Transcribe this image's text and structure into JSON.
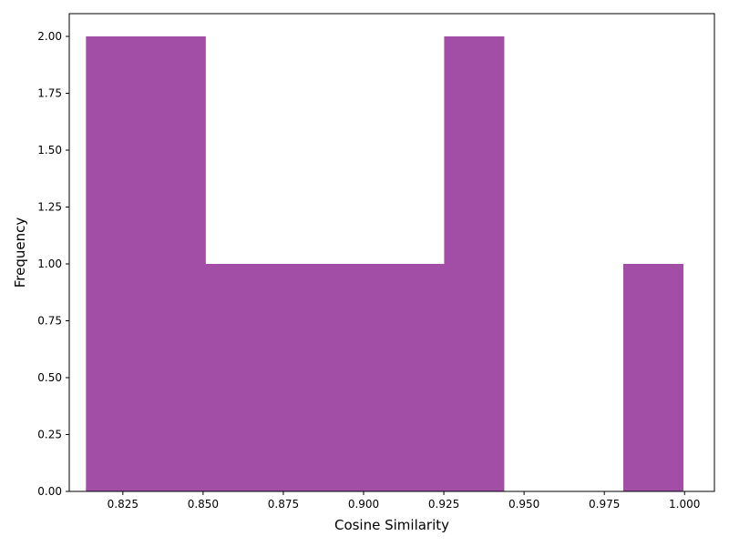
{
  "chart_data": {
    "type": "bar",
    "title": "",
    "xlabel": "Cosine Similarity",
    "ylabel": "Frequency",
    "xlim": [
      0.8083,
      1.0093
    ],
    "ylim": [
      0,
      2.1
    ],
    "bar_color": "#a24ea6",
    "bins": [
      {
        "x0": 0.8135,
        "x1": 0.8321,
        "value": 2
      },
      {
        "x0": 0.8321,
        "x1": 0.8507,
        "value": 2
      },
      {
        "x0": 0.8507,
        "x1": 0.8693,
        "value": 1
      },
      {
        "x0": 0.8693,
        "x1": 0.8879,
        "value": 1
      },
      {
        "x0": 0.8879,
        "x1": 0.9065,
        "value": 1
      },
      {
        "x0": 0.9065,
        "x1": 0.9251,
        "value": 1
      },
      {
        "x0": 0.9251,
        "x1": 0.9437,
        "value": 2
      },
      {
        "x0": 0.9437,
        "x1": 0.9623,
        "value": 0
      },
      {
        "x0": 0.9623,
        "x1": 0.9809,
        "value": 0
      },
      {
        "x0": 0.9809,
        "x1": 0.9995,
        "value": 1
      }
    ],
    "xticks": [
      {
        "value": 0.825,
        "label": "0.825"
      },
      {
        "value": 0.85,
        "label": "0.850"
      },
      {
        "value": 0.875,
        "label": "0.875"
      },
      {
        "value": 0.9,
        "label": "0.900"
      },
      {
        "value": 0.925,
        "label": "0.925"
      },
      {
        "value": 0.95,
        "label": "0.950"
      },
      {
        "value": 0.975,
        "label": "0.975"
      },
      {
        "value": 1.0,
        "label": "1.000"
      }
    ],
    "yticks": [
      {
        "value": 0,
        "label": "0.00"
      },
      {
        "value": 0.25,
        "label": "0.25"
      },
      {
        "value": 0.5,
        "label": "0.50"
      },
      {
        "value": 0.75,
        "label": "0.75"
      },
      {
        "value": 1.0,
        "label": "1.00"
      },
      {
        "value": 1.25,
        "label": "1.25"
      },
      {
        "value": 1.5,
        "label": "1.50"
      },
      {
        "value": 1.75,
        "label": "1.75"
      },
      {
        "value": 2.0,
        "label": "2.00"
      }
    ],
    "grid": false,
    "legend": "none"
  }
}
